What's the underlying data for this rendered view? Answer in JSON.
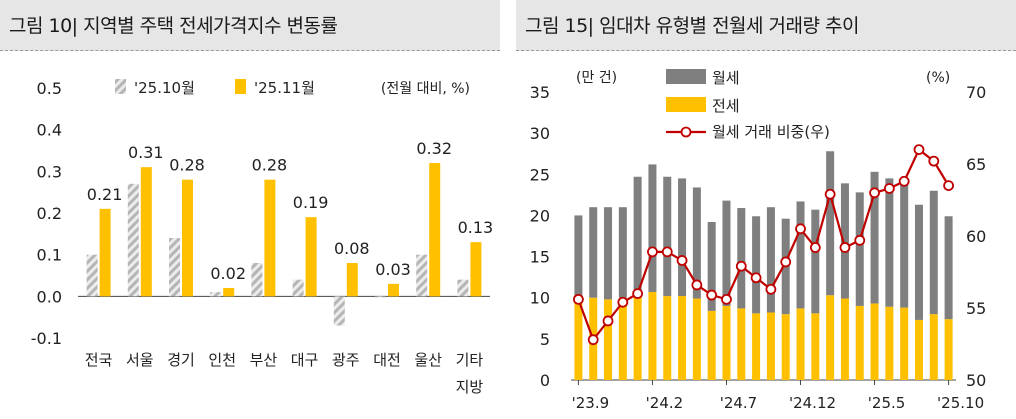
{
  "chart_data": [
    {
      "type": "bar",
      "title": "그림 10| 지역별 주택 전세가격지수 변동률",
      "unit_label": "(전월 대비, %)",
      "categories": [
        "전국",
        "서울",
        "경기",
        "인천",
        "부산",
        "대구",
        "광주",
        "대전",
        "울산",
        "기타"
      ],
      "category_line2": [
        "",
        "",
        "",
        "",
        "",
        "",
        "",
        "",
        "",
        "지방"
      ],
      "series": [
        {
          "name": "'25.10월",
          "values": [
            0.1,
            0.27,
            0.14,
            0.01,
            0.08,
            0.04,
            -0.07,
            0.0,
            0.1,
            0.04
          ],
          "color": "#c8c8c8",
          "pattern": "hatched"
        },
        {
          "name": "'25.11월",
          "values": [
            0.21,
            0.31,
            0.28,
            0.02,
            0.28,
            0.19,
            0.08,
            0.03,
            0.32,
            0.13
          ],
          "color": "#ffc000"
        }
      ],
      "data_labels": [
        "0.21",
        "0.31",
        "0.28",
        "0.02",
        "0.28",
        "0.19",
        "0.08",
        "0.03",
        "0.32",
        "0.13"
      ],
      "yticks": [
        "0.5",
        "0.4",
        "0.3",
        "0.2",
        "0.1",
        "0.0",
        "-0.1"
      ],
      "ylim": [
        -0.1,
        0.5
      ]
    },
    {
      "type": "bar",
      "title": "그림 15| 임대차 유형별 전월세 거래량 추이",
      "left_unit": "(만 건)",
      "right_unit": "(%)",
      "x": [
        "23.9",
        "23.10",
        "23.11",
        "23.12",
        "24.1",
        "24.2",
        "24.3",
        "24.4",
        "24.5",
        "24.6",
        "24.7",
        "24.8",
        "24.9",
        "24.10",
        "24.11",
        "24.12",
        "25.1",
        "25.2",
        "25.3",
        "25.4",
        "25.5",
        "25.6",
        "25.7",
        "25.8",
        "25.9",
        "25.10"
      ],
      "xtick_labels": [
        "'23.9",
        "'24.2",
        "'24.7",
        "'24.12",
        "'25.5",
        "'25.10"
      ],
      "xtick_index": [
        0,
        5,
        10,
        15,
        20,
        25
      ],
      "series": [
        {
          "name": "월세",
          "type": "stacked-bar",
          "color": "#7f7f7f",
          "values": [
            10.2,
            11.0,
            11.2,
            11.0,
            14.3,
            15.5,
            14.5,
            14.3,
            13.5,
            10.8,
            12.8,
            12.2,
            11.8,
            12.8,
            11.6,
            13.0,
            12.6,
            17.5,
            14.0,
            13.8,
            16.0,
            15.6,
            15.2,
            14.0,
            15.0,
            12.5
          ]
        },
        {
          "name": "전세",
          "type": "stacked-bar",
          "color": "#ffc000",
          "values": [
            9.8,
            10.0,
            9.8,
            10.0,
            10.4,
            10.7,
            10.2,
            10.2,
            9.9,
            8.4,
            9.0,
            8.7,
            8.1,
            8.2,
            8.0,
            8.7,
            8.1,
            10.3,
            9.9,
            9.0,
            9.3,
            8.9,
            8.8,
            7.3,
            8.0,
            7.4
          ]
        },
        {
          "name": "월세 거래 비중(우)",
          "type": "line",
          "axis": "right",
          "color": "#c00000",
          "values": [
            55.6,
            52.8,
            54.1,
            55.4,
            56.0,
            58.9,
            58.9,
            58.3,
            56.6,
            55.9,
            55.6,
            57.9,
            57.1,
            56.3,
            58.2,
            60.5,
            59.2,
            62.9,
            59.2,
            59.7,
            63.0,
            63.3,
            63.8,
            66.0,
            65.2,
            63.5
          ]
        }
      ],
      "left_yticks": [
        "35",
        "30",
        "25",
        "20",
        "15",
        "10",
        "5",
        "0"
      ],
      "right_yticks": [
        "70",
        "65",
        "60",
        "55",
        "50"
      ],
      "ylim_left": [
        0,
        35
      ],
      "ylim_right": [
        50,
        70
      ]
    }
  ]
}
